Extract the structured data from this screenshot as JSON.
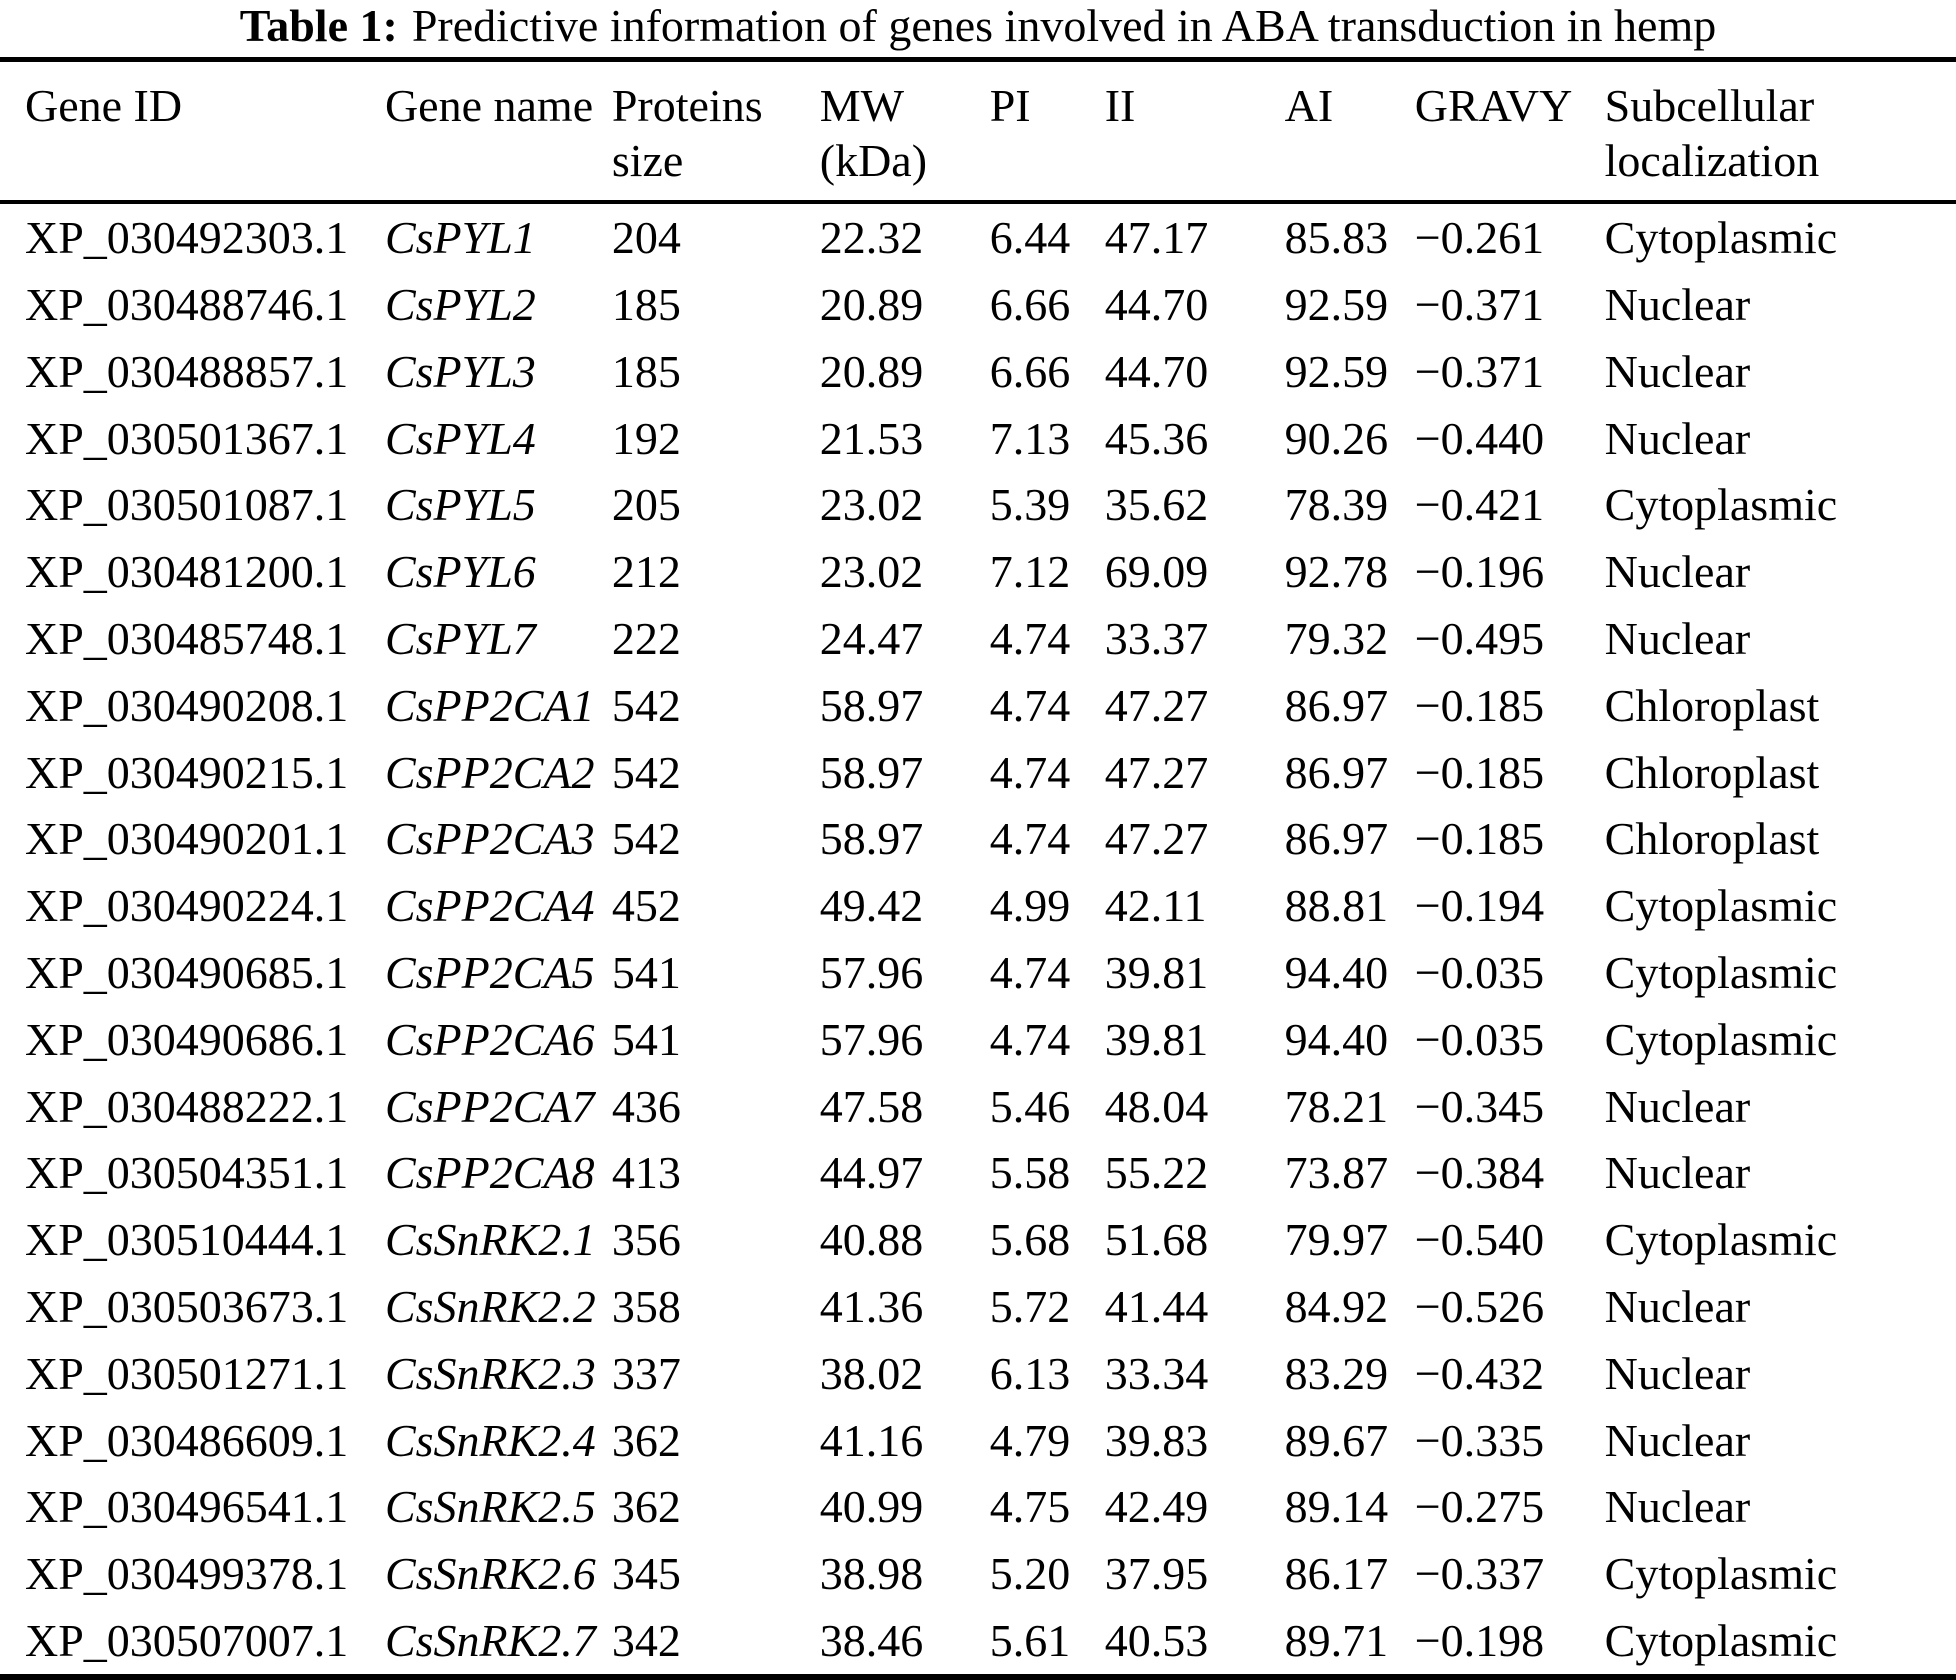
{
  "title": {
    "label": "Table 1:",
    "text": "Predictive information of genes involved in ABA transduction in hemp"
  },
  "table": {
    "columns": [
      "Gene ID",
      "Gene name",
      "Proteins size",
      "MW (kDa)",
      "PI",
      "II",
      "AI",
      "GRAVY",
      "Subcellular localization"
    ],
    "rows": [
      {
        "gene_id": "XP_030492303.1",
        "gene_name": "CsPYL1",
        "proteins_size": "204",
        "mw_kda": "22.32",
        "pi": "6.44",
        "ii": "47.17",
        "ai": "85.83",
        "gravy": "−0.261",
        "subcellular_localization": "Cytoplasmic"
      },
      {
        "gene_id": "XP_030488746.1",
        "gene_name": "CsPYL2",
        "proteins_size": "185",
        "mw_kda": "20.89",
        "pi": "6.66",
        "ii": "44.70",
        "ai": "92.59",
        "gravy": "−0.371",
        "subcellular_localization": "Nuclear"
      },
      {
        "gene_id": "XP_030488857.1",
        "gene_name": "CsPYL3",
        "proteins_size": "185",
        "mw_kda": "20.89",
        "pi": "6.66",
        "ii": "44.70",
        "ai": "92.59",
        "gravy": "−0.371",
        "subcellular_localization": "Nuclear"
      },
      {
        "gene_id": "XP_030501367.1",
        "gene_name": "CsPYL4",
        "proteins_size": "192",
        "mw_kda": "21.53",
        "pi": "7.13",
        "ii": "45.36",
        "ai": "90.26",
        "gravy": "−0.440",
        "subcellular_localization": "Nuclear"
      },
      {
        "gene_id": "XP_030501087.1",
        "gene_name": "CsPYL5",
        "proteins_size": "205",
        "mw_kda": "23.02",
        "pi": "5.39",
        "ii": "35.62",
        "ai": "78.39",
        "gravy": "−0.421",
        "subcellular_localization": "Cytoplasmic"
      },
      {
        "gene_id": "XP_030481200.1",
        "gene_name": "CsPYL6",
        "proteins_size": "212",
        "mw_kda": "23.02",
        "pi": "7.12",
        "ii": "69.09",
        "ai": "92.78",
        "gravy": "−0.196",
        "subcellular_localization": "Nuclear"
      },
      {
        "gene_id": "XP_030485748.1",
        "gene_name": "CsPYL7",
        "proteins_size": "222",
        "mw_kda": "24.47",
        "pi": "4.74",
        "ii": "33.37",
        "ai": "79.32",
        "gravy": "−0.495",
        "subcellular_localization": "Nuclear"
      },
      {
        "gene_id": "XP_030490208.1",
        "gene_name": "CsPP2CA1",
        "proteins_size": "542",
        "mw_kda": "58.97",
        "pi": "4.74",
        "ii": "47.27",
        "ai": "86.97",
        "gravy": "−0.185",
        "subcellular_localization": "Chloroplast"
      },
      {
        "gene_id": "XP_030490215.1",
        "gene_name": "CsPP2CA2",
        "proteins_size": "542",
        "mw_kda": "58.97",
        "pi": "4.74",
        "ii": "47.27",
        "ai": "86.97",
        "gravy": "−0.185",
        "subcellular_localization": "Chloroplast"
      },
      {
        "gene_id": "XP_030490201.1",
        "gene_name": "CsPP2CA3",
        "proteins_size": "542",
        "mw_kda": "58.97",
        "pi": "4.74",
        "ii": "47.27",
        "ai": "86.97",
        "gravy": "−0.185",
        "subcellular_localization": "Chloroplast"
      },
      {
        "gene_id": "XP_030490224.1",
        "gene_name": "CsPP2CA4",
        "proteins_size": "452",
        "mw_kda": "49.42",
        "pi": "4.99",
        "ii": "42.11",
        "ai": "88.81",
        "gravy": "−0.194",
        "subcellular_localization": "Cytoplasmic"
      },
      {
        "gene_id": "XP_030490685.1",
        "gene_name": "CsPP2CA5",
        "proteins_size": "541",
        "mw_kda": "57.96",
        "pi": "4.74",
        "ii": "39.81",
        "ai": "94.40",
        "gravy": "−0.035",
        "subcellular_localization": "Cytoplasmic"
      },
      {
        "gene_id": "XP_030490686.1",
        "gene_name": "CsPP2CA6",
        "proteins_size": "541",
        "mw_kda": "57.96",
        "pi": "4.74",
        "ii": "39.81",
        "ai": "94.40",
        "gravy": "−0.035",
        "subcellular_localization": "Cytoplasmic"
      },
      {
        "gene_id": "XP_030488222.1",
        "gene_name": "CsPP2CA7",
        "proteins_size": "436",
        "mw_kda": "47.58",
        "pi": "5.46",
        "ii": "48.04",
        "ai": "78.21",
        "gravy": "−0.345",
        "subcellular_localization": "Nuclear"
      },
      {
        "gene_id": "XP_030504351.1",
        "gene_name": "CsPP2CA8",
        "proteins_size": "413",
        "mw_kda": "44.97",
        "pi": "5.58",
        "ii": "55.22",
        "ai": "73.87",
        "gravy": "−0.384",
        "subcellular_localization": "Nuclear"
      },
      {
        "gene_id": "XP_030510444.1",
        "gene_name": "CsSnRK2.1",
        "proteins_size": "356",
        "mw_kda": "40.88",
        "pi": "5.68",
        "ii": "51.68",
        "ai": "79.97",
        "gravy": "−0.540",
        "subcellular_localization": "Cytoplasmic"
      },
      {
        "gene_id": "XP_030503673.1",
        "gene_name": "CsSnRK2.2",
        "proteins_size": "358",
        "mw_kda": "41.36",
        "pi": "5.72",
        "ii": "41.44",
        "ai": "84.92",
        "gravy": "−0.526",
        "subcellular_localization": "Nuclear"
      },
      {
        "gene_id": "XP_030501271.1",
        "gene_name": "CsSnRK2.3",
        "proteins_size": "337",
        "mw_kda": "38.02",
        "pi": "6.13",
        "ii": "33.34",
        "ai": "83.29",
        "gravy": "−0.432",
        "subcellular_localization": "Nuclear"
      },
      {
        "gene_id": "XP_030486609.1",
        "gene_name": "CsSnRK2.4",
        "proteins_size": "362",
        "mw_kda": "41.16",
        "pi": "4.79",
        "ii": "39.83",
        "ai": "89.67",
        "gravy": "−0.335",
        "subcellular_localization": "Nuclear"
      },
      {
        "gene_id": "XP_030496541.1",
        "gene_name": "CsSnRK2.5",
        "proteins_size": "362",
        "mw_kda": "40.99",
        "pi": "4.75",
        "ii": "42.49",
        "ai": "89.14",
        "gravy": "−0.275",
        "subcellular_localization": "Nuclear"
      },
      {
        "gene_id": "XP_030499378.1",
        "gene_name": "CsSnRK2.6",
        "proteins_size": "345",
        "mw_kda": "38.98",
        "pi": "5.20",
        "ii": "37.95",
        "ai": "86.17",
        "gravy": "−0.337",
        "subcellular_localization": "Cytoplasmic"
      },
      {
        "gene_id": "XP_030507007.1",
        "gene_name": "CsSnRK2.7",
        "proteins_size": "342",
        "mw_kda": "38.46",
        "pi": "5.61",
        "ii": "40.53",
        "ai": "89.71",
        "gravy": "−0.198",
        "subcellular_localization": "Cytoplasmic"
      }
    ]
  }
}
